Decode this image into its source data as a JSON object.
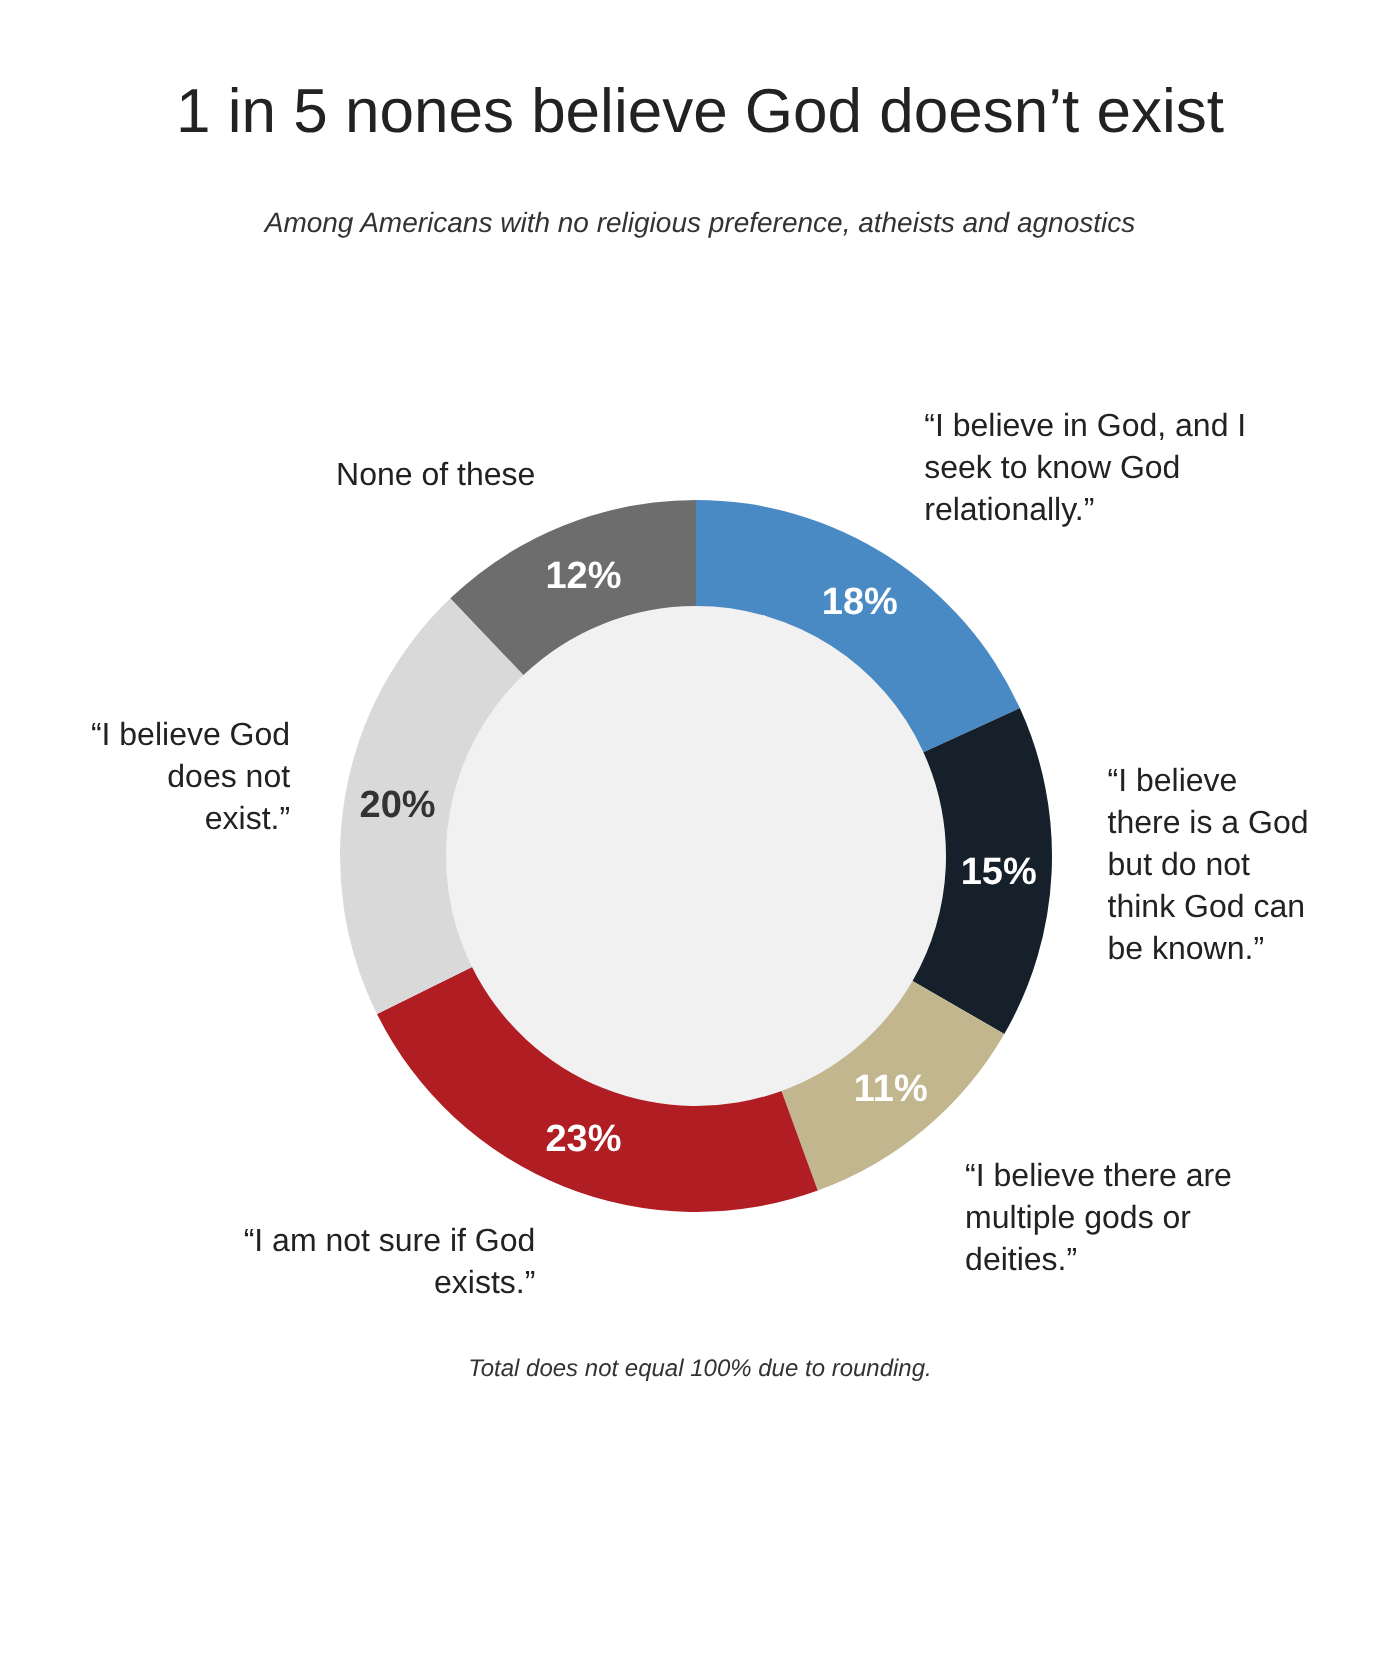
{
  "chart_data": {
    "type": "donut",
    "title": "1 in 5 nones believe God doesn’t exist",
    "subtitle": "Among Americans with no religious preference, atheists and agnostics",
    "categories": [
      "“I believe in God, and I seek to know God relationally.”",
      "“I believe there is a God but do not think God can be known.”",
      "“I believe there are multiple gods or deities.”",
      "“I am not sure if God exists.”",
      "“I believe God does not exist.”",
      "None of these"
    ],
    "values": [
      18,
      15,
      11,
      23,
      20,
      12
    ],
    "value_labels": [
      "18%",
      "15%",
      "11%",
      "23%",
      "20%",
      "12%"
    ],
    "colors": [
      "#4a8ac4",
      "#15202b",
      "#c2b68f",
      "#b01e24",
      "#d9d9d9",
      "#6d6d6d"
    ],
    "annotations": [
      "Total does not equal 100% due to rounding."
    ]
  }
}
